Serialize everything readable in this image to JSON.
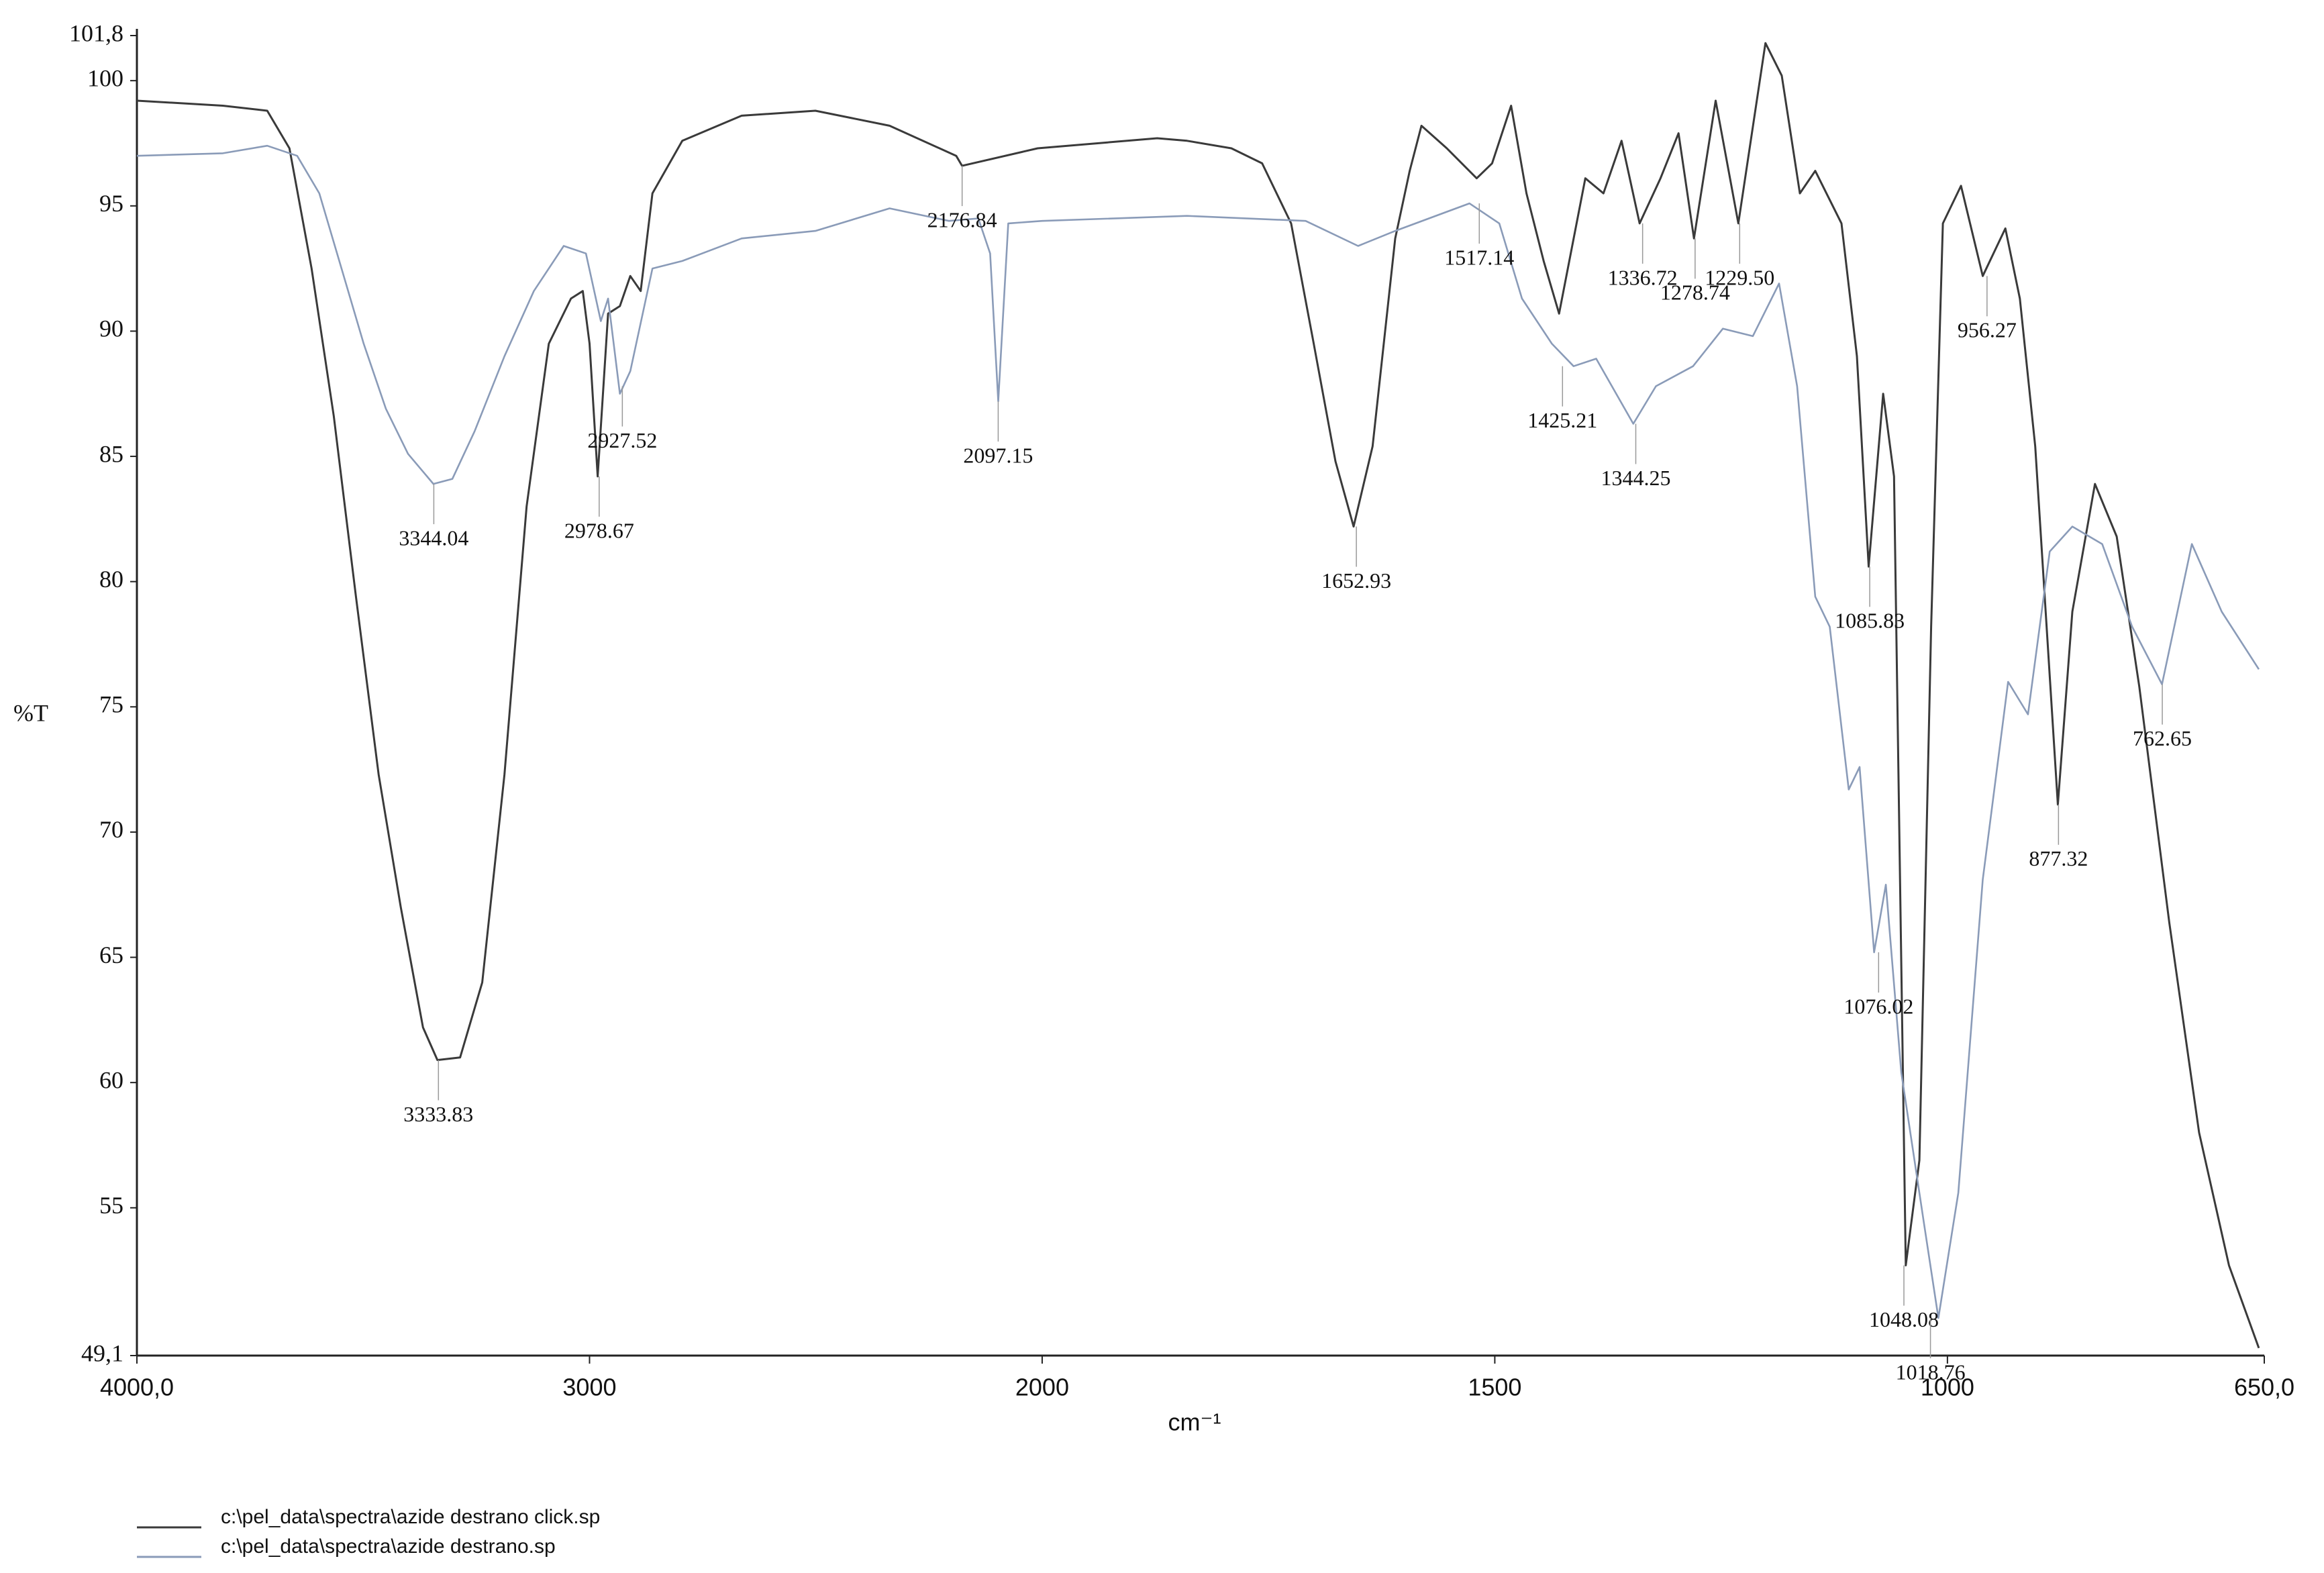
{
  "chart_data": {
    "type": "line",
    "x_label": "cm⁻¹",
    "y_label": "%T",
    "xlim": [
      4000,
      650
    ],
    "ylim": [
      49.1,
      101.8
    ],
    "xscale": {
      "break": 2000,
      "expansion": 2
    },
    "xticks": [
      {
        "value": 4000,
        "label": "4000,0"
      },
      3000,
      2000,
      1500,
      1000,
      {
        "value": 650,
        "label": "650,0"
      }
    ],
    "yticks": [
      {
        "value": 49.1,
        "label": "49,1"
      },
      55,
      60,
      65,
      70,
      75,
      80,
      85,
      90,
      95,
      100,
      {
        "value": 101.8,
        "label": "101,8"
      }
    ],
    "series": [
      {
        "name": "c:\\pel_data\\spectra\\azide destrano click.sp",
        "color": "#3a3a3a",
        "x": [
          4000,
          3810,
          3712,
          3663,
          3614,
          3565,
          3516,
          3466,
          3417,
          3368,
          3336,
          3286,
          3237,
          3188,
          3139,
          3090,
          3041,
          3015,
          3000,
          2982,
          2959,
          2933,
          2910,
          2887,
          2861,
          2795,
          2664,
          2501,
          2337,
          2190,
          2177,
          2010,
          1873,
          1840,
          1791,
          1757,
          1725,
          1700,
          1676,
          1656,
          1635,
          1610,
          1594,
          1581,
          1553,
          1520,
          1503,
          1482,
          1465,
          1446,
          1429,
          1400,
          1380,
          1360,
          1340,
          1317,
          1297,
          1280,
          1256,
          1231,
          1201,
          1183,
          1163,
          1146,
          1117,
          1100,
          1087,
          1071,
          1059,
          1046,
          1031,
          1018,
          1005,
          985,
          961,
          936,
          920,
          903,
          878,
          862,
          837,
          813,
          788,
          755,
          722,
          689,
          656
        ],
        "values": [
          99.2,
          99.0,
          98.8,
          97.3,
          92.5,
          86.6,
          79.4,
          72.3,
          67.0,
          62.2,
          60.9,
          61.0,
          64.0,
          72.3,
          83.0,
          89.5,
          91.3,
          91.6,
          89.5,
          84.2,
          90.7,
          91.0,
          92.2,
          91.6,
          95.5,
          97.6,
          98.6,
          98.8,
          98.2,
          97.0,
          96.6,
          97.3,
          97.7,
          97.6,
          97.3,
          96.7,
          94.3,
          89.5,
          84.8,
          82.2,
          85.4,
          93.7,
          96.4,
          98.2,
          97.3,
          96.1,
          96.7,
          99.0,
          95.5,
          92.8,
          90.7,
          96.1,
          95.5,
          97.6,
          94.3,
          96.1,
          97.9,
          93.7,
          99.2,
          94.3,
          101.5,
          100.2,
          95.5,
          96.4,
          94.3,
          89.0,
          80.6,
          87.5,
          84.2,
          52.7,
          56.9,
          78.2,
          94.3,
          95.8,
          92.2,
          94.1,
          91.3,
          85.4,
          71.1,
          78.8,
          83.9,
          81.8,
          75.8,
          66.4,
          58.0,
          52.7,
          49.4
        ]
      },
      {
        "name": "c:\\pel_data\\spectra\\azide destrano.sp",
        "color": "#8a9bb8",
        "x": [
          4000,
          3810,
          3712,
          3646,
          3597,
          3548,
          3499,
          3450,
          3401,
          3345,
          3303,
          3254,
          3188,
          3123,
          3057,
          3008,
          2975,
          2959,
          2933,
          2910,
          2861,
          2795,
          2664,
          2501,
          2337,
          2206,
          2141,
          2115,
          2097,
          2075,
          2000,
          1840,
          1709,
          1651,
          1610,
          1528,
          1495,
          1470,
          1437,
          1413,
          1388,
          1347,
          1322,
          1281,
          1248,
          1215,
          1186,
          1166,
          1146,
          1130,
          1109,
          1097,
          1081,
          1068,
          1051,
          1026,
          1010,
          988,
          961,
          933,
          911,
          887,
          862,
          829,
          796,
          763,
          730,
          697,
          656
        ],
        "values": [
          97.0,
          97.1,
          97.4,
          97.0,
          95.5,
          92.5,
          89.5,
          86.9,
          85.1,
          83.9,
          84.1,
          86.0,
          89.0,
          91.6,
          93.4,
          93.1,
          90.4,
          91.3,
          87.5,
          88.4,
          92.5,
          92.8,
          93.7,
          94.0,
          94.9,
          94.4,
          94.5,
          93.1,
          87.2,
          94.3,
          94.4,
          94.6,
          94.4,
          93.4,
          94.0,
          95.1,
          94.3,
          91.3,
          89.5,
          88.6,
          88.9,
          86.3,
          87.8,
          88.6,
          90.1,
          89.8,
          91.9,
          87.8,
          79.4,
          78.2,
          71.7,
          72.6,
          65.2,
          67.9,
          60.4,
          54.4,
          50.6,
          55.6,
          68.1,
          76.0,
          74.7,
          81.2,
          82.2,
          81.5,
          78.2,
          75.9,
          81.5,
          78.8,
          76.5
        ]
      }
    ],
    "annotations": [
      {
        "label": "3333.83",
        "x": 3333.83,
        "y": 60.9
      },
      {
        "label": "3344.04",
        "x": 3344.04,
        "y": 83.9
      },
      {
        "label": "2978.67",
        "x": 2978.67,
        "y": 84.2
      },
      {
        "label": "2927.52",
        "x": 2927.52,
        "y": 87.8
      },
      {
        "label": "2176.84",
        "x": 2176.84,
        "y": 96.6
      },
      {
        "label": "2097.15",
        "x": 2097.15,
        "y": 87.2
      },
      {
        "label": "1652.93",
        "x": 1652.93,
        "y": 82.2
      },
      {
        "label": "1517.14",
        "x": 1517.14,
        "y": 95.1
      },
      {
        "label": "1425.21",
        "x": 1425.21,
        "y": 88.6
      },
      {
        "label": "1344.25",
        "x": 1344.25,
        "y": 86.3
      },
      {
        "label": "1336.72",
        "x": 1336.72,
        "y": 94.3
      },
      {
        "label": "1278.74",
        "x": 1278.74,
        "y": 93.7
      },
      {
        "label": "1229.50",
        "x": 1229.5,
        "y": 94.3
      },
      {
        "label": "1085.83",
        "x": 1085.83,
        "y": 80.6
      },
      {
        "label": "1076.02",
        "x": 1076.02,
        "y": 65.2
      },
      {
        "label": "1048.08",
        "x": 1048.08,
        "y": 52.7
      },
      {
        "label": "1018.76",
        "x": 1018.76,
        "y": 50.6
      },
      {
        "label": "956.27",
        "x": 956.27,
        "y": 92.2
      },
      {
        "label": "877.32",
        "x": 877.32,
        "y": 71.1
      },
      {
        "label": "762.65",
        "x": 762.65,
        "y": 75.9
      }
    ]
  }
}
